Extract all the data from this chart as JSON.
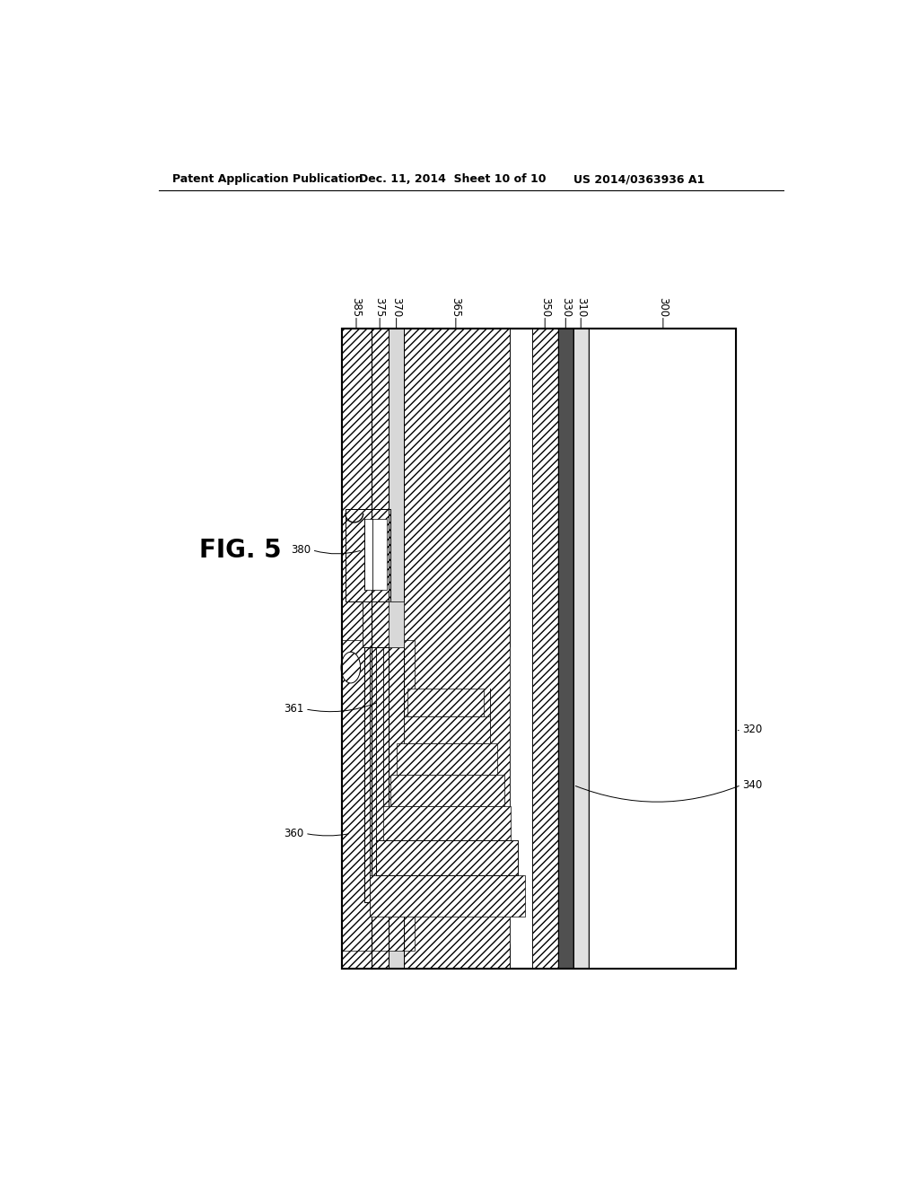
{
  "background_color": "#ffffff",
  "header_left": "Patent Application Publication",
  "header_center": "Dec. 11, 2014  Sheet 10 of 10",
  "header_right": "US 2014/0363936 A1",
  "figure_label": "FIG. 5",
  "top_labels": [
    "385",
    "375",
    "370",
    "365",
    "350",
    "330",
    "310",
    "300"
  ],
  "side_labels_left": [
    "380",
    "361",
    "360"
  ],
  "side_labels_right": [
    "320",
    "340"
  ]
}
